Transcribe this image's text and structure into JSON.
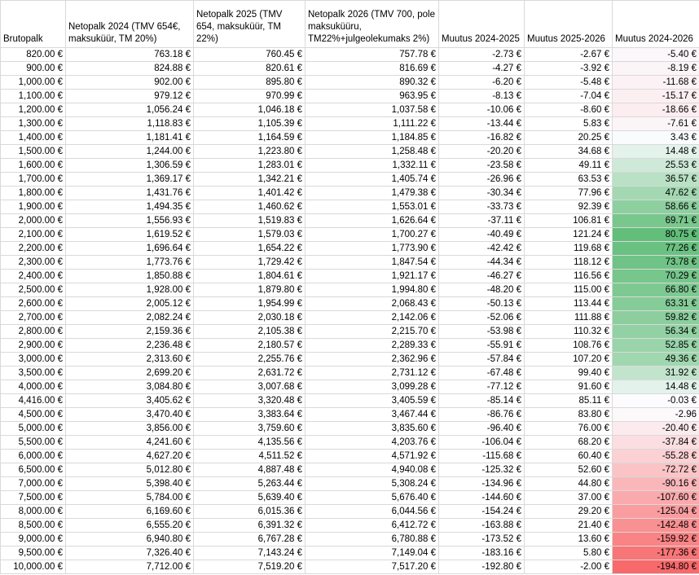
{
  "table": {
    "header": [
      "Brutopalk",
      "Netopalk 2024 (TMV 654€, maksuküür, TM 20%)",
      "Netopalk 2025 (TMV 654, maksuküür, TM 22%)",
      "Netopalk 2026 (TMV 700, pole maksuküüru, TM22%+julgeolekumaks 2%)",
      "Muutus 2024-2025",
      "Muutus 2025-2026",
      "Muutus 2024-2026"
    ],
    "rows": [
      [
        "820.00 €",
        "763.18 €",
        "760.45 €",
        "757.78 €",
        "-2.73 €",
        "-2.67 €",
        "-5.40 €"
      ],
      [
        "900.00 €",
        "824.88 €",
        "820.61 €",
        "816.69 €",
        "-4.27 €",
        "-3.92 €",
        "-8.19 €"
      ],
      [
        "1,000.00 €",
        "902.00 €",
        "895.80 €",
        "890.32 €",
        "-6.20 €",
        "-5.48 €",
        "-11.68 €"
      ],
      [
        "1,100.00 €",
        "979.12 €",
        "970.99 €",
        "963.95 €",
        "-8.13 €",
        "-7.04 €",
        "-15.17 €"
      ],
      [
        "1,200.00 €",
        "1,056.24 €",
        "1,046.18 €",
        "1,037.58 €",
        "-10.06 €",
        "-8.60 €",
        "-18.66 €"
      ],
      [
        "1,300.00 €",
        "1,118.83 €",
        "1,105.39 €",
        "1,111.22 €",
        "-13.44 €",
        "5.83 €",
        "-7.61 €"
      ],
      [
        "1,400.00 €",
        "1,181.41 €",
        "1,164.59 €",
        "1,184.85 €",
        "-16.82 €",
        "20.25 €",
        "3.43 €"
      ],
      [
        "1,500.00 €",
        "1,244.00 €",
        "1,223.80 €",
        "1,258.48 €",
        "-20.20 €",
        "34.68 €",
        "14.48 €"
      ],
      [
        "1,600.00 €",
        "1,306.59 €",
        "1,283.01 €",
        "1,332.11 €",
        "-23.58 €",
        "49.11 €",
        "25.53 €"
      ],
      [
        "1,700.00 €",
        "1,369.17 €",
        "1,342.21 €",
        "1,405.74 €",
        "-26.96 €",
        "63.53 €",
        "36.57 €"
      ],
      [
        "1,800.00 €",
        "1,431.76 €",
        "1,401.42 €",
        "1,479.38 €",
        "-30.34 €",
        "77.96 €",
        "47.62 €"
      ],
      [
        "1,900.00 €",
        "1,494.35 €",
        "1,460.62 €",
        "1,553.01 €",
        "-33.73 €",
        "92.39 €",
        "58.66 €"
      ],
      [
        "2,000.00 €",
        "1,556.93 €",
        "1,519.83 €",
        "1,626.64 €",
        "-37.11 €",
        "106.81 €",
        "69.71 €"
      ],
      [
        "2,100.00 €",
        "1,619.52 €",
        "1,579.03 €",
        "1,700.27 €",
        "-40.49 €",
        "121.24 €",
        "80.75 €"
      ],
      [
        "2,200.00 €",
        "1,696.64 €",
        "1,654.22 €",
        "1,773.90 €",
        "-42.42 €",
        "119.68 €",
        "77.26 €"
      ],
      [
        "2,300.00 €",
        "1,773.76 €",
        "1,729.42 €",
        "1,847.54 €",
        "-44.34 €",
        "118.12 €",
        "73.78 €"
      ],
      [
        "2,400.00 €",
        "1,850.88 €",
        "1,804.61 €",
        "1,921.17 €",
        "-46.27 €",
        "116.56 €",
        "70.29 €"
      ],
      [
        "2,500.00 €",
        "1,928.00 €",
        "1,879.80 €",
        "1,994.80 €",
        "-48.20 €",
        "115.00 €",
        "66.80 €"
      ],
      [
        "2,600.00 €",
        "2,005.12 €",
        "1,954.99 €",
        "2,068.43 €",
        "-50.13 €",
        "113.44 €",
        "63.31 €"
      ],
      [
        "2,700.00 €",
        "2,082.24 €",
        "2,030.18 €",
        "2,142.06 €",
        "-52.06 €",
        "111.88 €",
        "59.82 €"
      ],
      [
        "2,800.00 €",
        "2,159.36 €",
        "2,105.38 €",
        "2,215.70 €",
        "-53.98 €",
        "110.32 €",
        "56.34 €"
      ],
      [
        "2,900.00 €",
        "2,236.48 €",
        "2,180.57 €",
        "2,289.33 €",
        "-55.91 €",
        "108.76 €",
        "52.85 €"
      ],
      [
        "3,000.00 €",
        "2,313.60 €",
        "2,255.76 €",
        "2,362.96 €",
        "-57.84 €",
        "107.20 €",
        "49.36 €"
      ],
      [
        "3,500.00 €",
        "2,699.20 €",
        "2,631.72 €",
        "2,731.12 €",
        "-67.48 €",
        "99.40 €",
        "31.92 €"
      ],
      [
        "4,000.00 €",
        "3,084.80 €",
        "3,007.68 €",
        "3,099.28 €",
        "-77.12 €",
        "91.60 €",
        "14.48 €"
      ],
      [
        "4,416.00 €",
        "3,405.62 €",
        "3,320.48 €",
        "3,405.59 €",
        "-85.14 €",
        "85.11 €",
        "-0.03 €"
      ],
      [
        "4,500.00 €",
        "3,470.40 €",
        "3,383.64 €",
        "3,467.44 €",
        "-86.76 €",
        "83.80 €",
        "-2.96"
      ],
      [
        "5,000.00 €",
        "3,856.00 €",
        "3,759.60 €",
        "3,835.60 €",
        "-96.40 €",
        "76.00 €",
        "-20.40 €"
      ],
      [
        "5,500.00 €",
        "4,241.60 €",
        "4,135.56 €",
        "4,203.76 €",
        "-106.04 €",
        "68.20 €",
        "-37.84 €"
      ],
      [
        "6,000.00 €",
        "4,627.20 €",
        "4,511.52 €",
        "4,571.92 €",
        "-115.68 €",
        "60.40 €",
        "-55.28 €"
      ],
      [
        "6,500.00 €",
        "5,012.80 €",
        "4,887.48 €",
        "4,940.08 €",
        "-125.32 €",
        "52.60 €",
        "-72.72 €"
      ],
      [
        "7,000.00 €",
        "5,398.40 €",
        "5,263.44 €",
        "5,308.24 €",
        "-134.96 €",
        "44.80 €",
        "-90.16 €"
      ],
      [
        "7,500.00 €",
        "5,784.00 €",
        "5,639.40 €",
        "5,676.40 €",
        "-144.60 €",
        "37.00 €",
        "-107.60 €"
      ],
      [
        "8,000.00 €",
        "6,169.60 €",
        "6,015.36 €",
        "6,044.56 €",
        "-154.24 €",
        "29.20 €",
        "-125.04 €"
      ],
      [
        "8,500.00 €",
        "6,555.20 €",
        "6,391.32 €",
        "6,412.72 €",
        "-163.88 €",
        "21.40 €",
        "-142.48 €"
      ],
      [
        "9,000.00 €",
        "6,940.80 €",
        "6,767.28 €",
        "6,780.88 €",
        "-173.52 €",
        "13.60 €",
        "-159.92 €"
      ],
      [
        "9,500.00 €",
        "7,326.40 €",
        "7,143.24 €",
        "7,149.04 €",
        "-183.16 €",
        "5.80 €",
        "-177.36 €"
      ],
      [
        "10,000.00 €",
        "7,712.00 €",
        "7,519.20 €",
        "7,517.20 €",
        "-192.80 €",
        "-2.00 €",
        "-194.80 €"
      ]
    ]
  }
}
